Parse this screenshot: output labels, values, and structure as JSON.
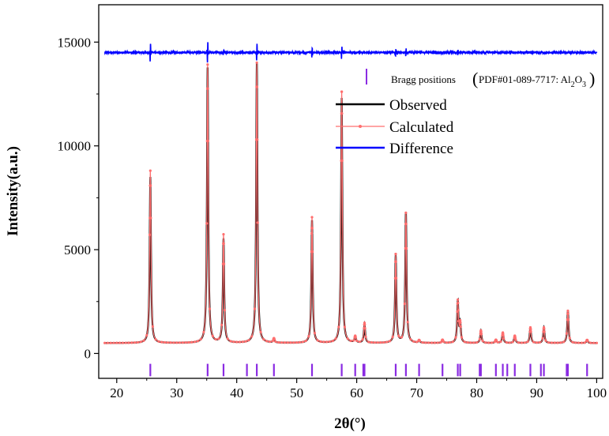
{
  "chart_data": {
    "type": "line",
    "xlabel": "2θ(°)",
    "ylabel": "Intensity(a.u.)",
    "xlim": [
      17,
      101
    ],
    "ylim": [
      -1200,
      16800
    ],
    "x_ticks": [
      20,
      30,
      40,
      50,
      60,
      70,
      80,
      90,
      100
    ],
    "y_ticks": [
      0,
      5000,
      10000,
      15000
    ],
    "x_tick_labels": [
      "20",
      "30",
      "40",
      "50",
      "60",
      "70",
      "80",
      "90",
      "100"
    ],
    "y_tick_labels": [
      "0",
      "5000",
      "10000",
      "15000"
    ],
    "baseline": 500,
    "difference_offset": 14500,
    "peaks": [
      {
        "x": 25.6,
        "observed": 8500,
        "calculated": 8800
      },
      {
        "x": 35.15,
        "observed": 13800,
        "calculated": 13900
      },
      {
        "x": 37.8,
        "observed": 5500,
        "calculated": 5700
      },
      {
        "x": 43.35,
        "observed": 14000,
        "calculated": 14000
      },
      {
        "x": 46.2,
        "observed": 700,
        "calculated": 700
      },
      {
        "x": 52.55,
        "observed": 6400,
        "calculated": 6550
      },
      {
        "x": 57.5,
        "observed": 12300,
        "calculated": 12600
      },
      {
        "x": 59.75,
        "observed": 800,
        "calculated": 800
      },
      {
        "x": 61.3,
        "observed": 1400,
        "calculated": 1450
      },
      {
        "x": 66.5,
        "observed": 4700,
        "calculated": 4750
      },
      {
        "x": 68.2,
        "observed": 6800,
        "calculated": 6750
      },
      {
        "x": 70.4,
        "observed": 620,
        "calculated": 620
      },
      {
        "x": 74.3,
        "observed": 650,
        "calculated": 650
      },
      {
        "x": 76.85,
        "observed": 2500,
        "calculated": 2500
      },
      {
        "x": 77.25,
        "observed": 1400,
        "calculated": 1400
      },
      {
        "x": 80.7,
        "observed": 1100,
        "calculated": 1100
      },
      {
        "x": 83.2,
        "observed": 650,
        "calculated": 650
      },
      {
        "x": 84.35,
        "observed": 1000,
        "calculated": 1000
      },
      {
        "x": 86.35,
        "observed": 850,
        "calculated": 850
      },
      {
        "x": 88.95,
        "observed": 1250,
        "calculated": 1250
      },
      {
        "x": 91.2,
        "observed": 1250,
        "calculated": 1250
      },
      {
        "x": 95.2,
        "observed": 2050,
        "calculated": 2050
      },
      {
        "x": 98.4,
        "observed": 650,
        "calculated": 650
      }
    ],
    "difference_spikes": [
      {
        "x": 25.6,
        "amp": 550
      },
      {
        "x": 35.15,
        "amp": 600
      },
      {
        "x": 37.8,
        "amp": 120
      },
      {
        "x": 43.35,
        "amp": 500
      },
      {
        "x": 52.55,
        "amp": 250
      },
      {
        "x": 57.5,
        "amp": 350
      },
      {
        "x": 66.5,
        "amp": 180
      },
      {
        "x": 68.2,
        "amp": 220
      },
      {
        "x": 76.85,
        "amp": 150
      }
    ],
    "bragg_positions": [
      25.6,
      35.15,
      37.8,
      41.7,
      43.35,
      46.2,
      52.55,
      57.5,
      59.75,
      61.1,
      61.3,
      66.5,
      68.2,
      70.4,
      74.3,
      76.85,
      77.25,
      80.5,
      80.7,
      83.2,
      84.35,
      85.1,
      86.35,
      88.95,
      90.7,
      91.2,
      95.0,
      95.2,
      98.4
    ],
    "bragg_label": "Bragg positions",
    "bragg_phase": "PDF#01-089-7717: Al",
    "bragg_sub1": "2",
    "bragg_o": "O",
    "bragg_sub2": "3",
    "series": [
      {
        "name": "Observed",
        "color": "#000000"
      },
      {
        "name": "Calculated",
        "color": "#ff6f6f"
      },
      {
        "name": "Difference",
        "color": "#0000ff"
      }
    ],
    "bragg_color": "#8a2be2"
  }
}
